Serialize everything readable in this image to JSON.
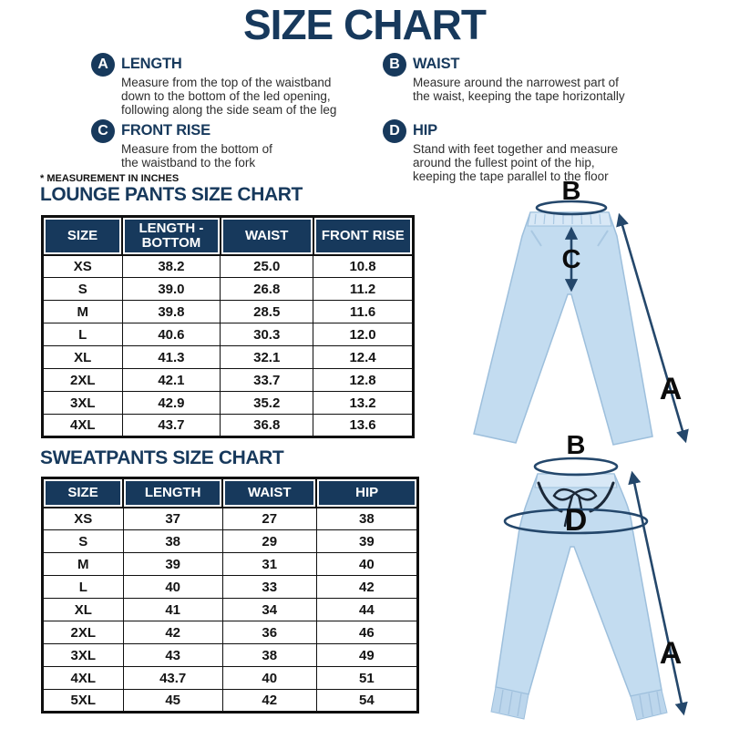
{
  "page": {
    "title": "SIZE CHART",
    "note": "* MEASUREMENT IN INCHES"
  },
  "definitions": [
    {
      "letter": "A",
      "term": "LENGTH",
      "desc": "Measure from the top of the waistband\ndown to the bottom of the led opening,\nfollowing along the side seam of the leg"
    },
    {
      "letter": "B",
      "term": "WAIST",
      "desc": "Measure around the narrowest part of\nthe waist, keeping the tape horizontally"
    },
    {
      "letter": "C",
      "term": "FRONT RISE",
      "desc": "Measure from the bottom of\nthe waistband to the fork"
    },
    {
      "letter": "D",
      "term": "HIP",
      "desc": "Stand with feet together and measure\naround the fullest point of the hip,\nkeeping the tape parallel to the floor"
    }
  ],
  "chart_data": [
    {
      "type": "table",
      "title": "LOUNGE PANTS SIZE CHART",
      "columns": [
        "SIZE",
        "LENGTH - BOTTOM",
        "WAIST",
        "FRONT RISE"
      ],
      "rows": [
        [
          "XS",
          "38.2",
          "25.0",
          "10.8"
        ],
        [
          "S",
          "39.0",
          "26.8",
          "11.2"
        ],
        [
          "M",
          "39.8",
          "28.5",
          "11.6"
        ],
        [
          "L",
          "40.6",
          "30.3",
          "12.0"
        ],
        [
          "XL",
          "41.3",
          "32.1",
          "12.4"
        ],
        [
          "2XL",
          "42.1",
          "33.7",
          "12.8"
        ],
        [
          "3XL",
          "42.9",
          "35.2",
          "13.2"
        ],
        [
          "4XL",
          "43.7",
          "36.8",
          "13.6"
        ]
      ]
    },
    {
      "type": "table",
      "title": "SWEATPANTS SIZE CHART",
      "columns": [
        "SIZE",
        "LENGTH",
        "WAIST",
        "HIP"
      ],
      "rows": [
        [
          "XS",
          "37",
          "27",
          "38"
        ],
        [
          "S",
          "38",
          "29",
          "39"
        ],
        [
          "M",
          "39",
          "31",
          "40"
        ],
        [
          "L",
          "40",
          "33",
          "42"
        ],
        [
          "XL",
          "41",
          "34",
          "44"
        ],
        [
          "2XL",
          "42",
          "36",
          "46"
        ],
        [
          "3XL",
          "43",
          "38",
          "49"
        ],
        [
          "4XL",
          "43.7",
          "40",
          "51"
        ],
        [
          "5XL",
          "45",
          "42",
          "54"
        ]
      ]
    }
  ],
  "illustrations": {
    "lounge": {
      "waist_label": "B",
      "front_rise_label": "C",
      "length_label": "A"
    },
    "sweat": {
      "waist_label": "B",
      "hip_label": "D",
      "length_label": "A"
    }
  },
  "colors": {
    "navy": "#17395c",
    "arrow": "#24476b",
    "pants_fill": "#c3dcf0",
    "text_dark": "#151515"
  }
}
